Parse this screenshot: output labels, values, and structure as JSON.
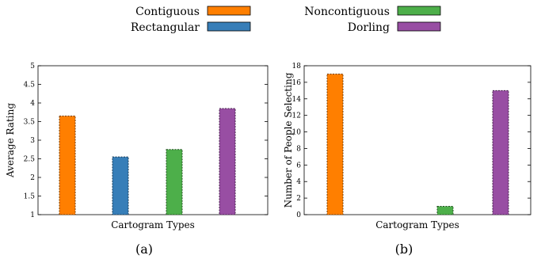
{
  "legend": [
    {
      "label": "Contiguous",
      "color": "#ff7f00"
    },
    {
      "label": "Noncontiguous",
      "color": "#4daf4a"
    },
    {
      "label": "Rectangular",
      "color": "#377eb8"
    },
    {
      "label": "Dorling",
      "color": "#984ea3"
    }
  ],
  "chart_data": [
    {
      "type": "bar",
      "caption": "(a)",
      "xlabel": "Cartogram Types",
      "ylabel": "Average Rating",
      "ylim": [
        1,
        5
      ],
      "yticks": [
        "1",
        "1.5",
        "2",
        "2.5",
        "3",
        "3.5",
        "4",
        "4.5",
        "5"
      ],
      "grid": false,
      "categories": [
        "Contiguous",
        "Rectangular",
        "Noncontiguous",
        "Dorling"
      ],
      "colors": [
        "#ff7f00",
        "#377eb8",
        "#4daf4a",
        "#984ea3"
      ],
      "values": [
        3.65,
        2.55,
        2.75,
        3.85
      ]
    },
    {
      "type": "bar",
      "caption": "(b)",
      "xlabel": "Cartogram Types",
      "ylabel": "Number of People Selecting",
      "ylim": [
        0,
        18
      ],
      "yticks": [
        "0",
        "2",
        "4",
        "6",
        "8",
        "10",
        "12",
        "14",
        "16",
        "18"
      ],
      "grid": false,
      "categories": [
        "Contiguous",
        "Rectangular",
        "Noncontiguous",
        "Dorling"
      ],
      "colors": [
        "#ff7f00",
        "#377eb8",
        "#4daf4a",
        "#984ea3"
      ],
      "values": [
        17,
        0,
        1,
        15
      ]
    }
  ]
}
